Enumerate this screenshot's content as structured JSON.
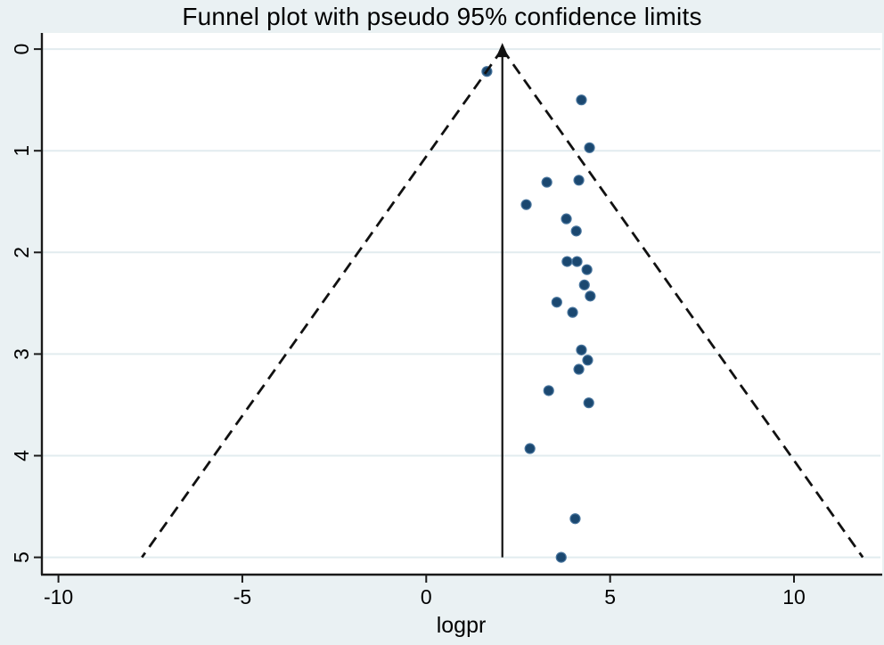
{
  "figure": {
    "title": "Funnel plot with pseudo 95% confidence limits",
    "xlabel": "logpr"
  },
  "chart_data": {
    "type": "scatter",
    "variant": "funnel_plot_meta_analysis",
    "title": "Funnel plot with pseudo 95% confidence limits",
    "xlabel": "logpr",
    "ylabel": "",
    "x_ticks": [
      -10,
      -5,
      0,
      5,
      10
    ],
    "y_ticks": [
      0,
      1,
      2,
      3,
      4,
      5
    ],
    "xlim": [
      -10.45,
      12.35
    ],
    "ylim": [
      -0.15,
      5.17
    ],
    "y_axis_inverted_zero_at_top": true,
    "grid": "horizontal_only",
    "legend": "none",
    "center_line": {
      "x": 2.07,
      "style": "solid",
      "arrow_at_top": true
    },
    "pseudo_confidence_limits": {
      "center_x": 2.07,
      "se_multiplier": 1.96,
      "apex_y": 0,
      "base_y": 5,
      "style": "dashed"
    },
    "points": [
      [
        1.65,
        0.22
      ],
      [
        4.22,
        0.5
      ],
      [
        4.44,
        0.97
      ],
      [
        3.28,
        1.31
      ],
      [
        4.15,
        1.29
      ],
      [
        2.72,
        1.53
      ],
      [
        3.81,
        1.67
      ],
      [
        4.08,
        1.79
      ],
      [
        3.83,
        2.09
      ],
      [
        4.1,
        2.09
      ],
      [
        4.37,
        2.17
      ],
      [
        4.3,
        2.32
      ],
      [
        4.46,
        2.43
      ],
      [
        3.55,
        2.49
      ],
      [
        3.98,
        2.59
      ],
      [
        4.22,
        2.96
      ],
      [
        4.39,
        3.06
      ],
      [
        4.15,
        3.15
      ],
      [
        3.33,
        3.36
      ],
      [
        4.42,
        3.48
      ],
      [
        2.82,
        3.93
      ],
      [
        4.05,
        4.62
      ],
      [
        3.67,
        5.0
      ]
    ],
    "colors": {
      "outer_background": "#eaf1f3",
      "plot_background": "#ffffff",
      "gridline": "#e2ecef",
      "axis_line": "#1a1a1a",
      "funnel_line": "#111111",
      "marker_fill": "#1b4870",
      "marker_stroke": "#45729b",
      "text": "#000000"
    }
  }
}
